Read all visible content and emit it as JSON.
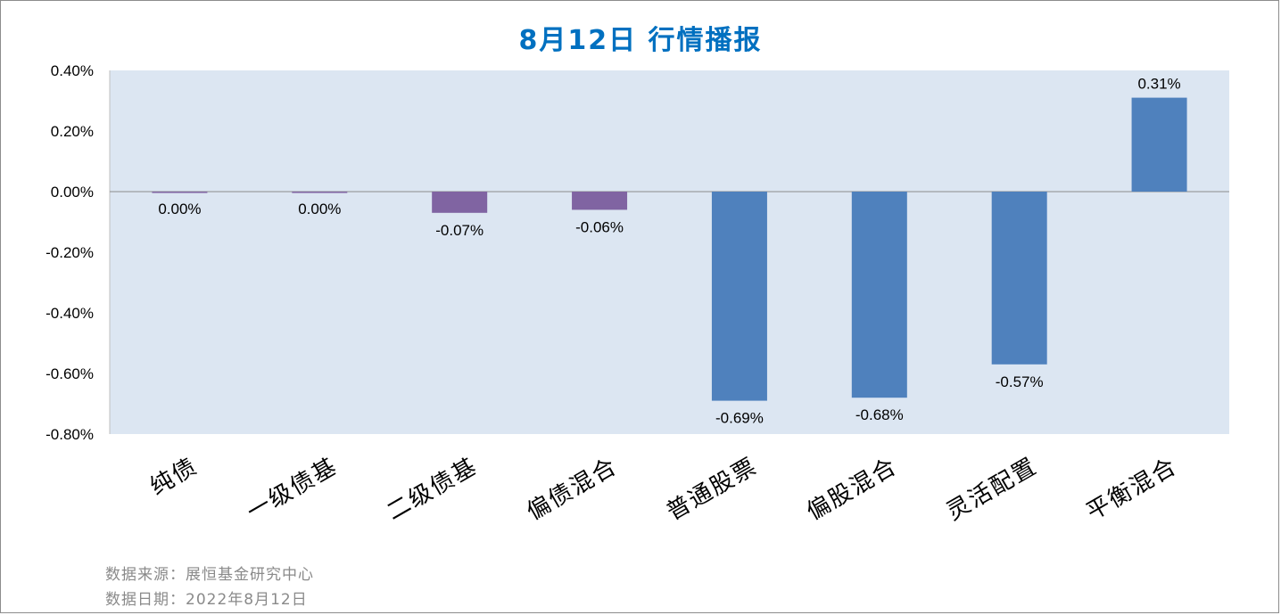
{
  "title": "8月12日  行情播报",
  "chart_data": {
    "type": "bar",
    "categories": [
      "纯债",
      "一级债基",
      "二级债基",
      "偏债混合",
      "普通股票",
      "偏股混合",
      "灵活配置",
      "平衡混合"
    ],
    "values": [
      0.0,
      0.0,
      -0.07,
      -0.06,
      -0.69,
      -0.68,
      -0.57,
      0.31
    ],
    "value_labels": [
      "0.00%",
      "0.00%",
      "-0.07%",
      "-0.06%",
      "-0.69%",
      "-0.68%",
      "-0.57%",
      "0.31%"
    ],
    "colors": [
      "#8064a2",
      "#8064a2",
      "#8064a2",
      "#8064a2",
      "#4f81bd",
      "#4f81bd",
      "#4f81bd",
      "#4f81bd"
    ],
    "yticks": [
      0.4,
      0.2,
      0.0,
      -0.2,
      -0.4,
      -0.6,
      -0.8
    ],
    "ytick_labels": [
      "0.40%",
      "0.20%",
      "0.00%",
      "-0.20%",
      "-0.40%",
      "-0.60%",
      "-0.80%"
    ],
    "ylim": [
      -0.8,
      0.4
    ],
    "plot_background": "#dce6f2",
    "xlabel": "",
    "ylabel": ""
  },
  "footer": {
    "source": "数据来源：展恒基金研究中心",
    "date": "数据日期：2022年8月12日"
  }
}
